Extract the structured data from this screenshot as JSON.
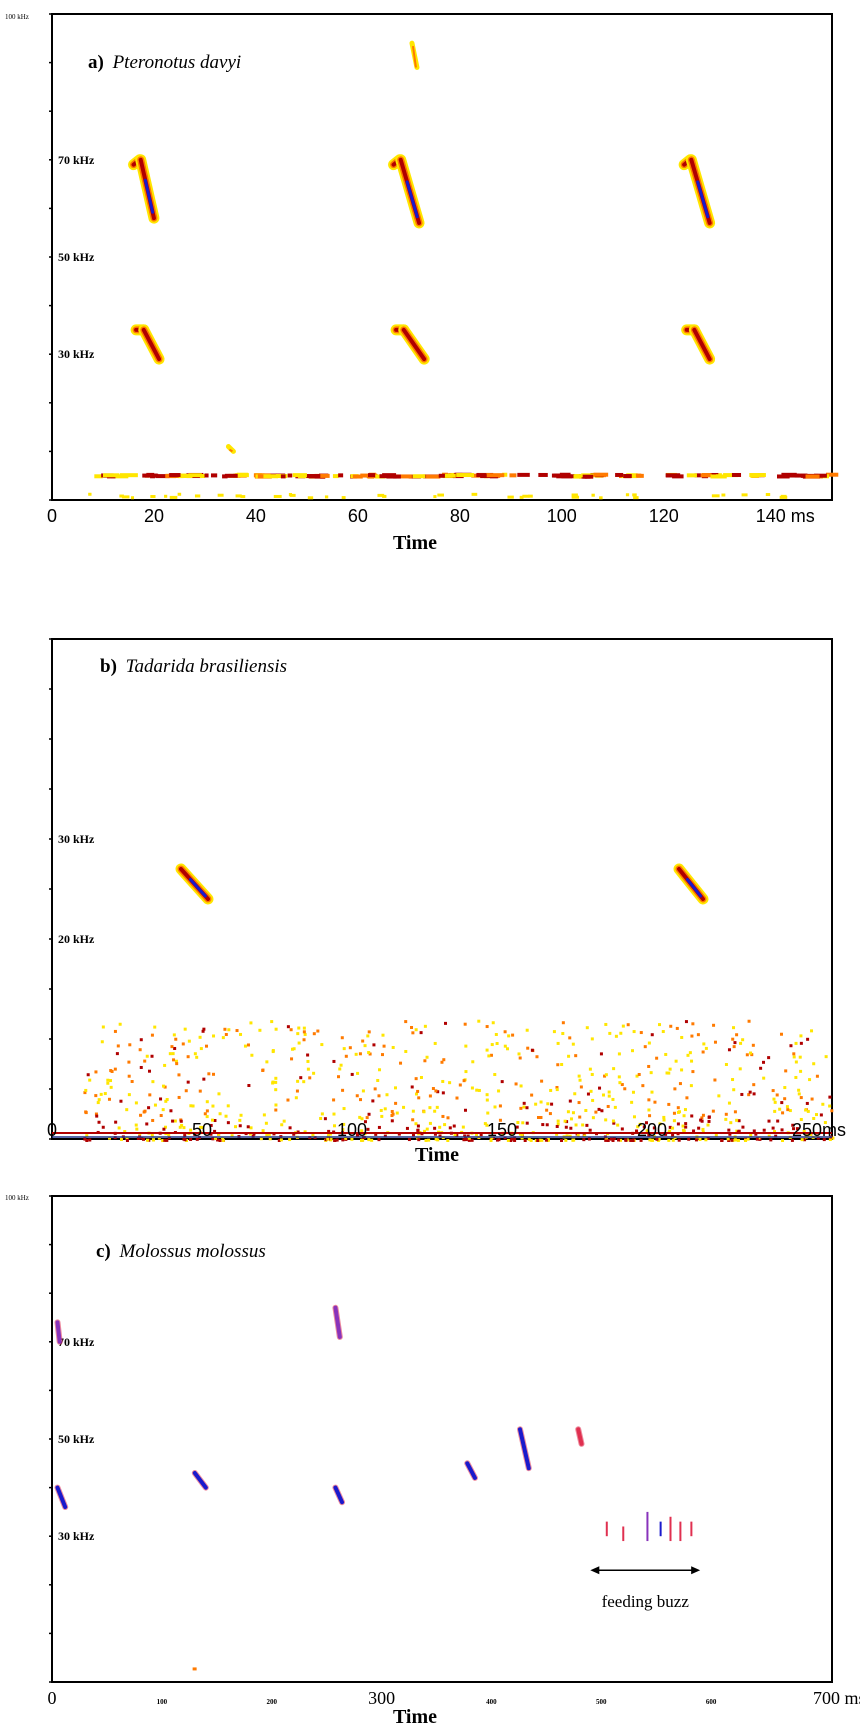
{
  "colors": {
    "low": "#ffe600",
    "mid": "#ff7a00",
    "high": "#b00000",
    "peak": "#1a1acc",
    "purple": "#8833bb",
    "pink": "#e03050"
  },
  "chart_data": [
    {
      "type": "heatmap",
      "title_label": "a)",
      "title_species": "Pteronotus davyi",
      "xlabel": "Time",
      "x_ticks": [
        {
          "value": 0,
          "label": "0"
        },
        {
          "value": 20,
          "label": "20"
        },
        {
          "value": 40,
          "label": "40"
        },
        {
          "value": 60,
          "label": "60"
        },
        {
          "value": 80,
          "label": "80"
        },
        {
          "value": 100,
          "label": "100"
        },
        {
          "value": 120,
          "label": "120"
        },
        {
          "value": 140,
          "label": "140 ms"
        }
      ],
      "xlim": [
        0,
        153
      ],
      "ylim": [
        0,
        100
      ],
      "y_labels": [
        {
          "value": 70,
          "label": "70 kHz"
        },
        {
          "value": 50,
          "label": "50 kHz"
        },
        {
          "value": 30,
          "label": "30 kHz"
        }
      ],
      "top_corner_label": "100 kHz",
      "calls": [
        {
          "t0": 16,
          "t1": 20,
          "f_start": 70,
          "f_end": 58,
          "harmonic_t1": 21,
          "h_start": 35,
          "h_end": 29
        },
        {
          "t0": 67,
          "t1": 72,
          "f_start": 70,
          "f_end": 57,
          "harmonic_t1": 73,
          "h_start": 35,
          "h_end": 29
        },
        {
          "t0": 124,
          "t1": 129,
          "f_start": 70,
          "f_end": 57,
          "harmonic_t1": 129,
          "h_start": 35,
          "h_end": 29
        }
      ],
      "faint_marks": [
        {
          "t": 71,
          "f_from": 94,
          "f_to": 89
        },
        {
          "t": 35,
          "f_from": 11,
          "f_to": 10
        }
      ],
      "noise_band_khz": 5
    },
    {
      "type": "heatmap",
      "title_label": "b)",
      "title_species": "Tadarida brasiliensis",
      "xlabel": "Time",
      "x_ticks": [
        {
          "value": 0,
          "label": "0"
        },
        {
          "value": 50,
          "label": "50"
        },
        {
          "value": 100,
          "label": "100"
        },
        {
          "value": 150,
          "label": "150"
        },
        {
          "value": 200,
          "label": "200"
        },
        {
          "value": 250,
          "label": "250ms"
        }
      ],
      "xlim": [
        0,
        260
      ],
      "ylim": [
        0,
        50
      ],
      "y_labels": [
        {
          "value": 30,
          "label": "30 kHz"
        },
        {
          "value": 20,
          "label": "20 kHz"
        }
      ],
      "calls": [
        {
          "t0": 43,
          "t1": 52,
          "f_start": 27,
          "f_end": 24
        },
        {
          "t0": 209,
          "t1": 217,
          "f_start": 27,
          "f_end": 24
        }
      ],
      "noise_max_khz": 12
    },
    {
      "type": "heatmap",
      "title_label": "c)",
      "title_species": "Molossus molossus",
      "xlabel": "Time",
      "x_ticks": [
        {
          "value": 0,
          "label": "0"
        },
        {
          "value": 100,
          "label": "100"
        },
        {
          "value": 200,
          "label": "200"
        },
        {
          "value": 300,
          "label": "300"
        },
        {
          "value": 400,
          "label": "400"
        },
        {
          "value": 500,
          "label": "500"
        },
        {
          "value": 600,
          "label": "600"
        },
        {
          "value": 700,
          "label": "700 ms"
        }
      ],
      "xlim": [
        0,
        710
      ],
      "ylim": [
        0,
        100
      ],
      "y_labels": [
        {
          "value": 70,
          "label": "70 kHz"
        },
        {
          "value": 50,
          "label": "50 kHz"
        },
        {
          "value": 30,
          "label": "30 kHz"
        }
      ],
      "top_corner_label": "100 kHz",
      "calls": [
        {
          "t0": 5,
          "t1": 12,
          "f_start": 40,
          "f_end": 36,
          "color": "peak"
        },
        {
          "t0": 130,
          "t1": 140,
          "f_start": 43,
          "f_end": 40,
          "color": "peak"
        },
        {
          "t0": 258,
          "t1": 264,
          "f_start": 40,
          "f_end": 37,
          "color": "peak"
        },
        {
          "t0": 378,
          "t1": 385,
          "f_start": 45,
          "f_end": 42,
          "color": "peak"
        },
        {
          "t0": 426,
          "t1": 434,
          "f_start": 52,
          "f_end": 44,
          "color": "peak"
        },
        {
          "t0": 479,
          "t1": 482,
          "f_start": 52,
          "f_end": 49,
          "color": "pink"
        },
        {
          "t0": 5,
          "t1": 7,
          "f_start": 74,
          "f_end": 70,
          "color": "purple"
        },
        {
          "t0": 258,
          "t1": 262,
          "f_start": 77,
          "f_end": 71,
          "color": "purple"
        }
      ],
      "buzz_pulses": [
        {
          "t": 505,
          "f_top": 33,
          "f_bot": 30,
          "color": "pink"
        },
        {
          "t": 520,
          "f_top": 32,
          "f_bot": 29,
          "color": "pink"
        },
        {
          "t": 542,
          "f_top": 35,
          "f_bot": 29,
          "color": "purple"
        },
        {
          "t": 554,
          "f_top": 33,
          "f_bot": 30,
          "color": "peak"
        },
        {
          "t": 563,
          "f_top": 34,
          "f_bot": 29,
          "color": "pink"
        },
        {
          "t": 572,
          "f_top": 33,
          "f_bot": 29,
          "color": "pink"
        },
        {
          "t": 582,
          "f_top": 33,
          "f_bot": 30,
          "color": "pink"
        }
      ],
      "annotation": {
        "text": "feeding buzz",
        "t_from": 490,
        "t_to": 590,
        "f": 23
      },
      "faint_marks": [
        {
          "t": 128,
          "f": 3
        }
      ]
    }
  ]
}
